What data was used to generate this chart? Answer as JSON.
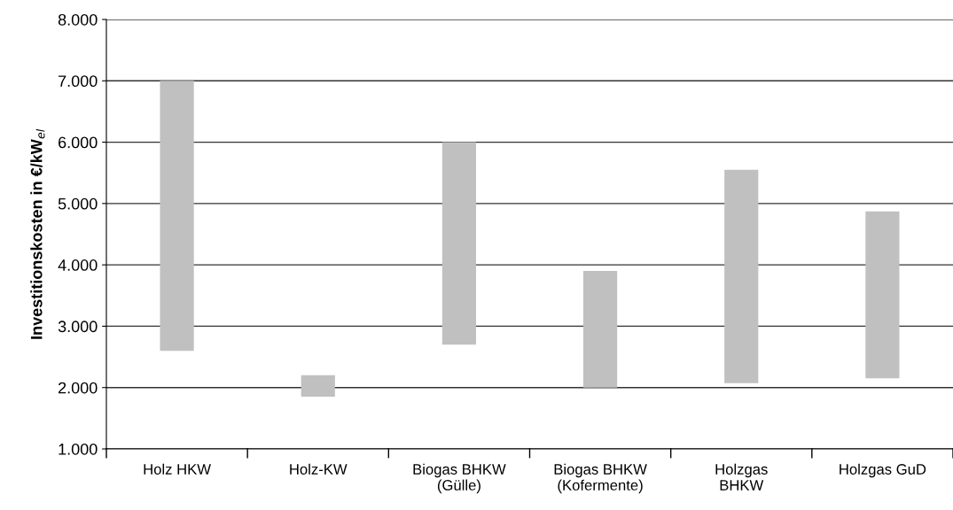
{
  "chart_data": {
    "type": "bar",
    "ylabel": "Investitionskosten in €/kW$_{el}$",
    "categories": [
      "Holz HKW",
      "Holz-KW",
      "Biogas BHKW\n(Gülle)",
      "Biogas BHKW\n(Kofermente)",
      "Holzgas\nBHKW",
      "Holzgas GuD"
    ],
    "base": [
      2600,
      1850,
      2700,
      2000,
      2070,
      2150
    ],
    "values": [
      4400,
      350,
      3300,
      1900,
      3480,
      2720
    ],
    "color": "#c0c0c0",
    "ylim": [
      1000,
      8000
    ],
    "yticks": [
      {
        "value": 1000,
        "label": "1.000"
      },
      {
        "value": 2000,
        "label": "2.000"
      },
      {
        "value": 3000,
        "label": "3.000"
      },
      {
        "value": 4000,
        "label": "4.000"
      },
      {
        "value": 5000,
        "label": "5.000"
      },
      {
        "value": 6000,
        "label": "6.000"
      },
      {
        "value": 7000,
        "label": "7.000"
      },
      {
        "value": 8000,
        "label": "8.000"
      }
    ],
    "grid": "y"
  }
}
